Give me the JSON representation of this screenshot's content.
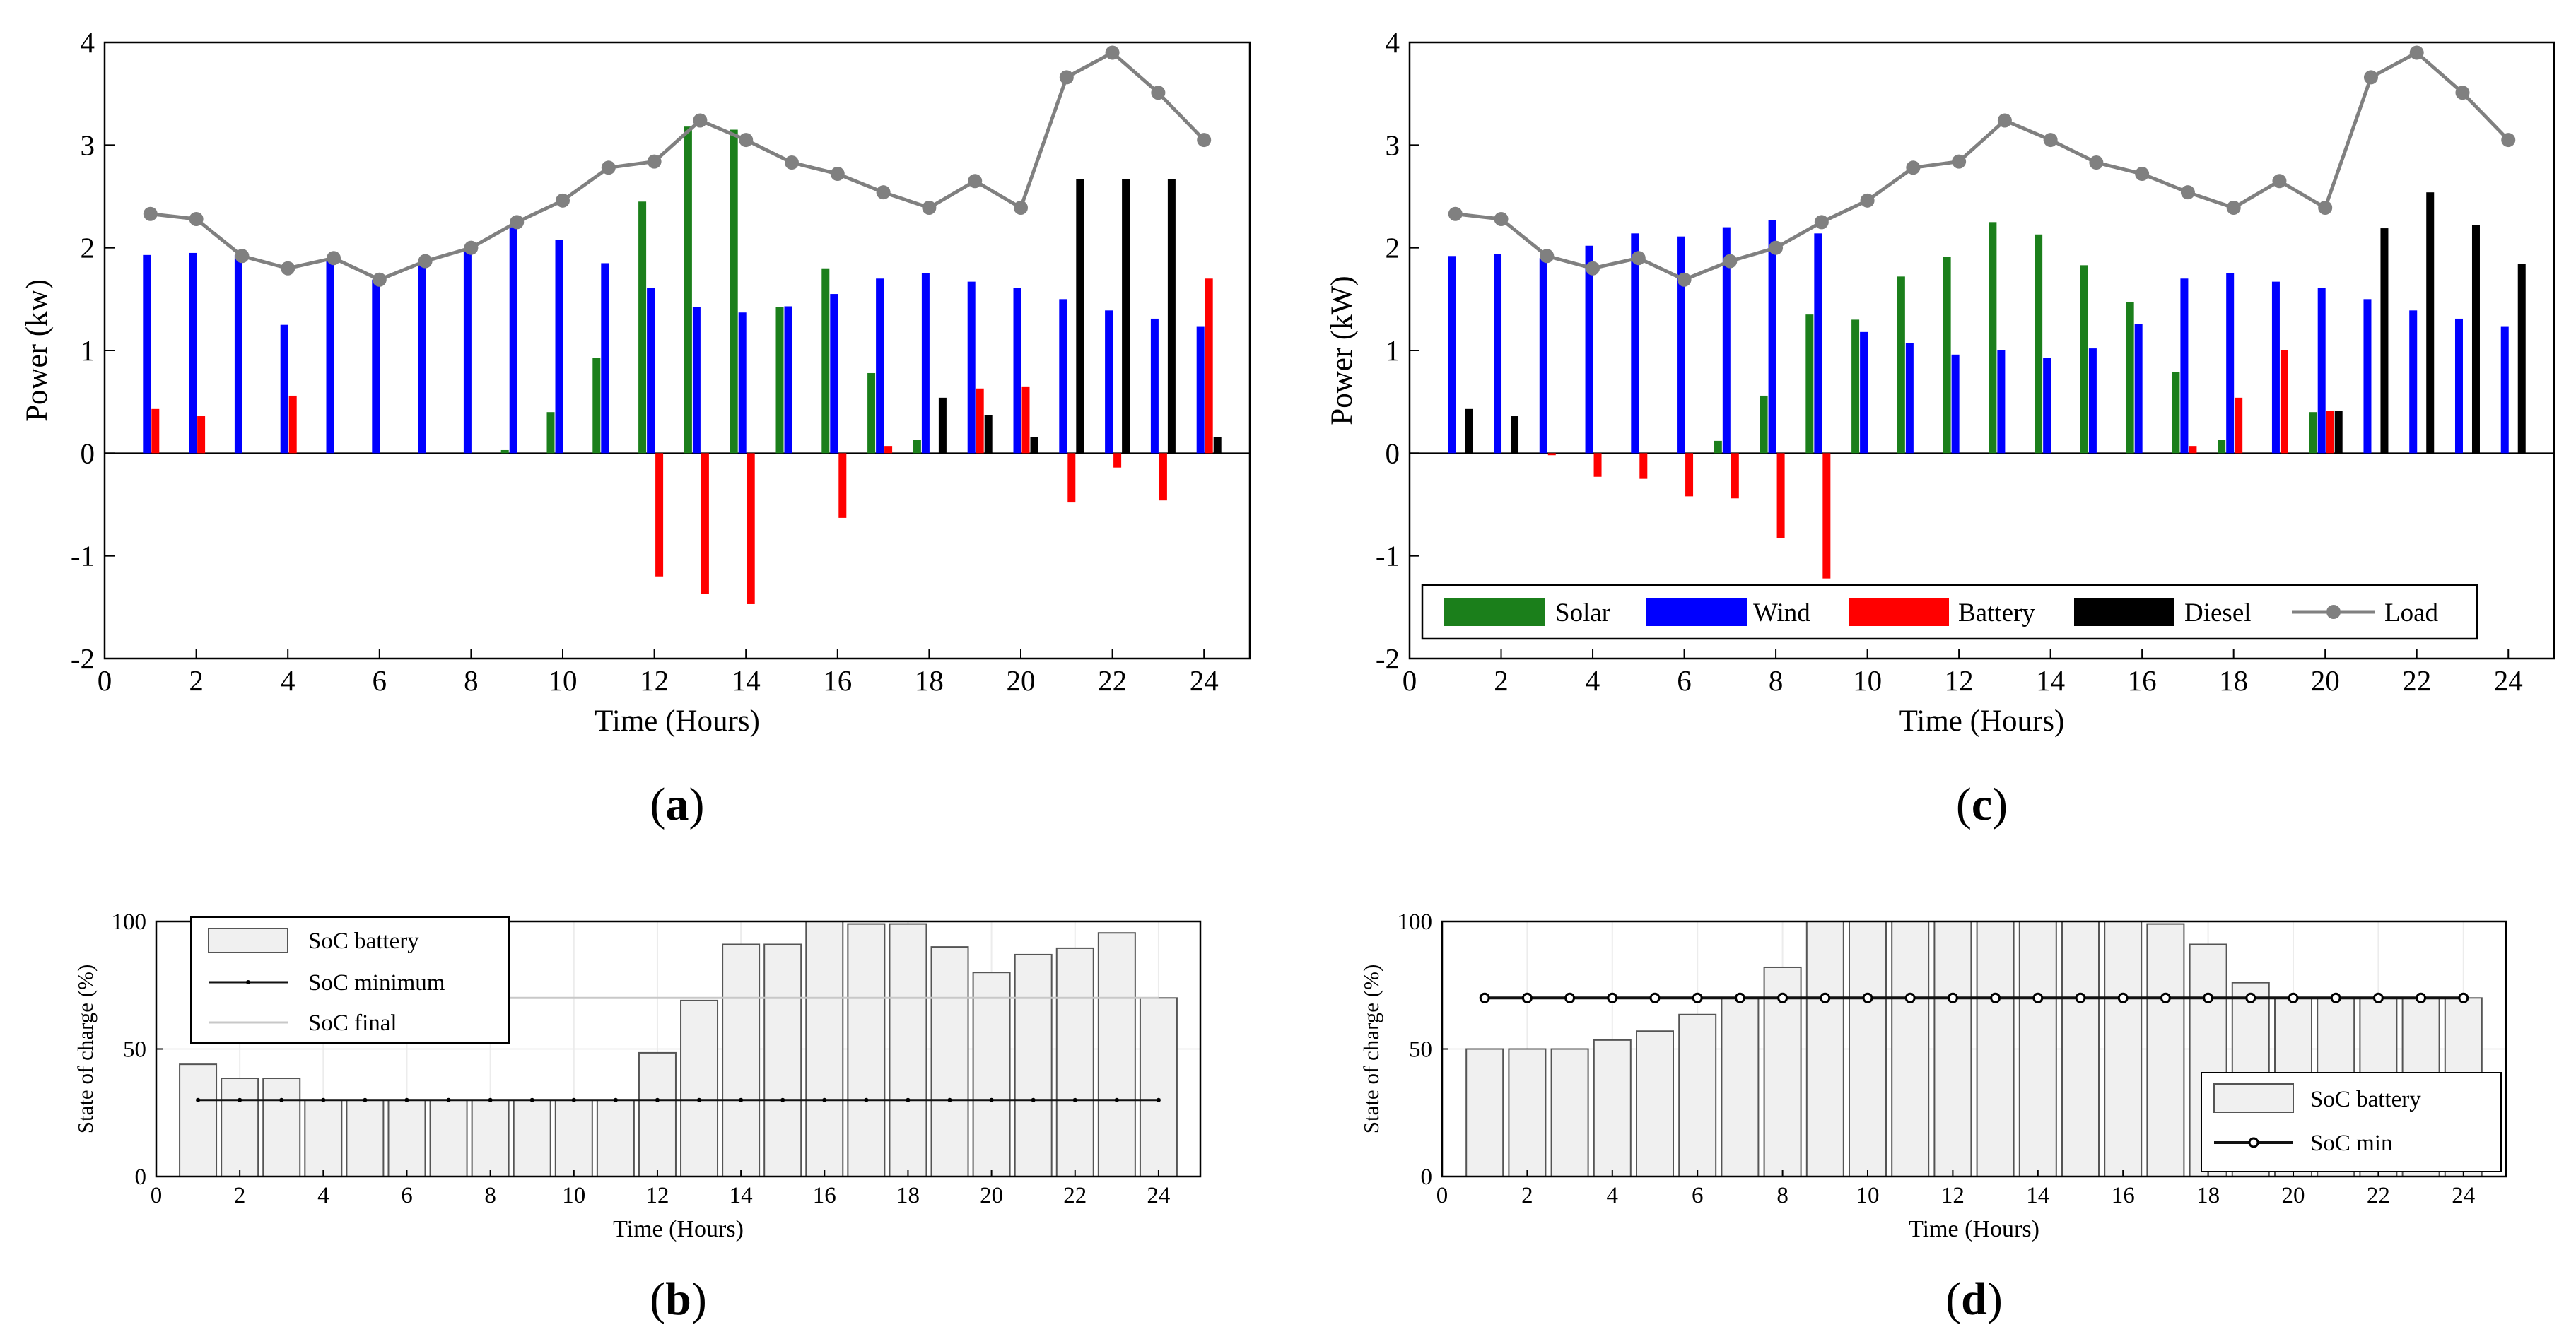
{
  "colors": {
    "solar": "#1b7f1b",
    "wind": "#0000ff",
    "battery": "#ff0000",
    "diesel": "#000000",
    "load": "#808080",
    "soc_fill": "#f0f0f0",
    "soc_edge": "#555555",
    "soc_final": "#c8c8c8",
    "soc_min": "#111111"
  },
  "chart_data": [
    {
      "id": "a",
      "type": "bar",
      "panel_label": "(a)",
      "xlabel": "Time (Hours)",
      "ylabel": "Power (kw)",
      "xlim": [
        0,
        25
      ],
      "ylim": [
        -2,
        4
      ],
      "xticks": [
        0,
        2,
        4,
        6,
        8,
        10,
        12,
        14,
        16,
        18,
        20,
        22,
        24
      ],
      "yticks": [
        -2,
        -1,
        0,
        1,
        2,
        3,
        4
      ],
      "hours": [
        1,
        2,
        3,
        4,
        5,
        6,
        7,
        8,
        9,
        10,
        11,
        12,
        13,
        14,
        15,
        16,
        17,
        18,
        19,
        20,
        21,
        22,
        23,
        24
      ],
      "series": [
        {
          "name": "Solar",
          "values": [
            0,
            0,
            0,
            0,
            0,
            0,
            0,
            0,
            0.03,
            0.4,
            0.93,
            2.45,
            3.18,
            3.15,
            1.42,
            1.8,
            0.78,
            0.13,
            0,
            0,
            0,
            0,
            0,
            0
          ]
        },
        {
          "name": "Wind",
          "values": [
            1.93,
            1.95,
            1.93,
            1.25,
            1.87,
            1.69,
            1.85,
            1.97,
            2.2,
            2.08,
            1.85,
            1.61,
            1.42,
            1.37,
            1.43,
            1.55,
            1.7,
            1.75,
            1.67,
            1.61,
            1.5,
            1.39,
            1.31,
            1.23
          ]
        },
        {
          "name": "Battery",
          "values": [
            0.43,
            0.36,
            0,
            0.56,
            0,
            0,
            0,
            0,
            0,
            0,
            0,
            -1.2,
            -1.37,
            -1.47,
            0,
            -0.63,
            0.07,
            0,
            0.63,
            0.65,
            -0.48,
            -0.14,
            -0.46,
            1.7
          ]
        },
        {
          "name": "Diesel",
          "values": [
            0,
            0,
            0,
            0,
            0,
            0,
            0,
            0,
            0,
            0,
            0,
            0,
            0,
            0,
            0,
            0,
            0,
            0.54,
            0.37,
            0.16,
            2.67,
            2.67,
            2.67,
            0.16
          ]
        },
        {
          "name": "Load",
          "kind": "line",
          "values": [
            2.33,
            2.28,
            1.92,
            1.8,
            1.9,
            1.69,
            1.87,
            2.0,
            2.25,
            2.46,
            2.78,
            2.84,
            3.24,
            3.05,
            2.83,
            2.72,
            2.54,
            2.39,
            2.65,
            2.39,
            3.66,
            3.9,
            3.51,
            3.05
          ]
        }
      ]
    },
    {
      "id": "c",
      "type": "bar",
      "panel_label": "(c)",
      "xlabel": "Time (Hours)",
      "ylabel": "Power (kW)",
      "xlim": [
        0,
        25
      ],
      "ylim": [
        -2,
        4
      ],
      "xticks": [
        0,
        2,
        4,
        6,
        8,
        10,
        12,
        14,
        16,
        18,
        20,
        22,
        24
      ],
      "yticks": [
        -2,
        -1,
        0,
        1,
        2,
        3,
        4
      ],
      "legend_entries": [
        "Solar",
        "Wind",
        "Battery",
        "Diesel",
        "Load"
      ],
      "hours": [
        1,
        2,
        3,
        4,
        5,
        6,
        7,
        8,
        9,
        10,
        11,
        12,
        13,
        14,
        15,
        16,
        17,
        18,
        19,
        20,
        21,
        22,
        23,
        24
      ],
      "series": [
        {
          "name": "Solar",
          "values": [
            0,
            0,
            0,
            0,
            0,
            0,
            0.12,
            0.56,
            1.35,
            1.3,
            1.72,
            1.91,
            2.25,
            2.13,
            1.83,
            1.47,
            0.79,
            0.13,
            0,
            0.4,
            0,
            0,
            0,
            0
          ]
        },
        {
          "name": "Wind",
          "values": [
            1.92,
            1.94,
            1.9,
            2.02,
            2.14,
            2.11,
            2.2,
            2.27,
            2.14,
            1.18,
            1.07,
            0.96,
            1.0,
            0.93,
            1.02,
            1.26,
            1.7,
            1.75,
            1.67,
            1.61,
            1.5,
            1.39,
            1.31,
            1.23
          ]
        },
        {
          "name": "Battery",
          "values": [
            0,
            0,
            -0.02,
            -0.23,
            -0.25,
            -0.42,
            -0.44,
            -0.83,
            -1.22,
            0,
            0,
            0,
            0,
            0,
            0,
            0,
            0.07,
            0.54,
            1.0,
            0.41,
            0,
            0,
            0,
            0
          ]
        },
        {
          "name": "Diesel",
          "values": [
            0.43,
            0.36,
            0,
            0,
            0,
            0,
            0,
            0,
            0,
            0,
            0,
            0,
            0,
            0,
            0,
            0,
            0,
            0,
            0,
            0.41,
            2.19,
            2.54,
            2.22,
            1.84
          ]
        },
        {
          "name": "Load",
          "kind": "line",
          "values": [
            2.33,
            2.28,
            1.92,
            1.8,
            1.9,
            1.69,
            1.87,
            2.0,
            2.25,
            2.46,
            2.78,
            2.84,
            3.24,
            3.05,
            2.83,
            2.72,
            2.54,
            2.39,
            2.65,
            2.39,
            3.66,
            3.9,
            3.51,
            3.05
          ]
        }
      ]
    },
    {
      "id": "b",
      "type": "bar",
      "panel_label": "(b)",
      "xlabel": "Time (Hours)",
      "ylabel": "State of charge (%)",
      "xlim": [
        0,
        25
      ],
      "ylim": [
        0,
        100
      ],
      "xticks": [
        0,
        2,
        4,
        6,
        8,
        10,
        12,
        14,
        16,
        18,
        20,
        22,
        24
      ],
      "yticks": [
        0,
        50,
        100
      ],
      "legend_entries": [
        "SoC battery",
        "SoC minimum",
        "SoC final"
      ],
      "hours": [
        1,
        2,
        3,
        4,
        5,
        6,
        7,
        8,
        9,
        10,
        11,
        12,
        13,
        14,
        15,
        16,
        17,
        18,
        19,
        20,
        21,
        22,
        23,
        24
      ],
      "series": [
        {
          "name": "SoC battery",
          "values": [
            44,
            38.5,
            38.5,
            30,
            30,
            30,
            30,
            30,
            30,
            30,
            30,
            48.5,
            69,
            91,
            91,
            100,
            99,
            99,
            90,
            80,
            87,
            89.5,
            95.5,
            70
          ]
        },
        {
          "name": "SoC minimum",
          "kind": "line",
          "values": [
            30,
            30,
            30,
            30,
            30,
            30,
            30,
            30,
            30,
            30,
            30,
            30,
            30,
            30,
            30,
            30,
            30,
            30,
            30,
            30,
            30,
            30,
            30,
            30
          ]
        },
        {
          "name": "SoC final",
          "kind": "hline",
          "values": [
            70
          ]
        }
      ]
    },
    {
      "id": "d",
      "type": "bar",
      "panel_label": "(d)",
      "xlabel": "Time (Hours)",
      "ylabel": "State of charge (%)",
      "xlim": [
        0,
        25
      ],
      "ylim": [
        0,
        100
      ],
      "xticks": [
        0,
        2,
        4,
        6,
        8,
        10,
        12,
        14,
        16,
        18,
        20,
        22,
        24
      ],
      "yticks": [
        0,
        50,
        100
      ],
      "legend_entries": [
        "SoC battery",
        "SoC min"
      ],
      "hours": [
        1,
        2,
        3,
        4,
        5,
        6,
        7,
        8,
        9,
        10,
        11,
        12,
        13,
        14,
        15,
        16,
        17,
        18,
        19,
        20,
        21,
        22,
        23,
        24
      ],
      "series": [
        {
          "name": "SoC battery",
          "values": [
            50,
            50,
            50,
            53.5,
            57,
            63.5,
            70,
            82,
            100,
            100,
            100,
            100,
            100,
            100,
            100,
            100,
            99,
            91,
            76,
            70,
            70,
            70,
            70,
            70
          ]
        },
        {
          "name": "SoC min",
          "kind": "line",
          "values": [
            70,
            70,
            70,
            70,
            70,
            70,
            70,
            70,
            70,
            70,
            70,
            70,
            70,
            70,
            70,
            70,
            70,
            70,
            70,
            70,
            70,
            70,
            70,
            70
          ]
        }
      ]
    }
  ]
}
